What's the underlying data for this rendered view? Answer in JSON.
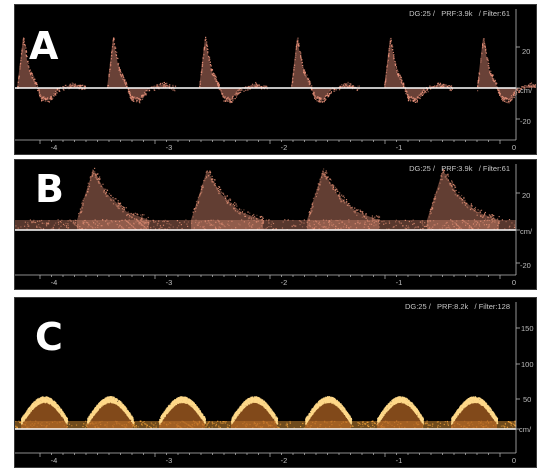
{
  "panels": [
    {
      "label": "A",
      "params": "DG:25 /   PRF:3.9k   / Filter:61",
      "scale_labels": [
        "20",
        "cm/",
        "-20"
      ],
      "x_ticks": [
        "-4",
        "-3",
        "-2",
        "-1",
        "0"
      ],
      "color": "#e8917a",
      "pattern": "biphasic"
    },
    {
      "label": "B",
      "params": "DG:25 /   PRF:3.9k   / Filter:61",
      "scale_labels": [
        "20",
        "cm/",
        "-20"
      ],
      "x_ticks": [
        "-4",
        "-3",
        "-2",
        "-1",
        "0"
      ],
      "color": "#d98a70",
      "pattern": "monophasic"
    },
    {
      "label": "C",
      "params": "DG:25 /   PRF:8.2k   / Filter:128",
      "scale_labels": [
        "150",
        "100",
        "50",
        "cm/"
      ],
      "x_ticks": [
        "-4",
        "-3",
        "-2",
        "-1",
        "0"
      ],
      "color": "#f3a43b",
      "pattern": "damped"
    }
  ]
}
